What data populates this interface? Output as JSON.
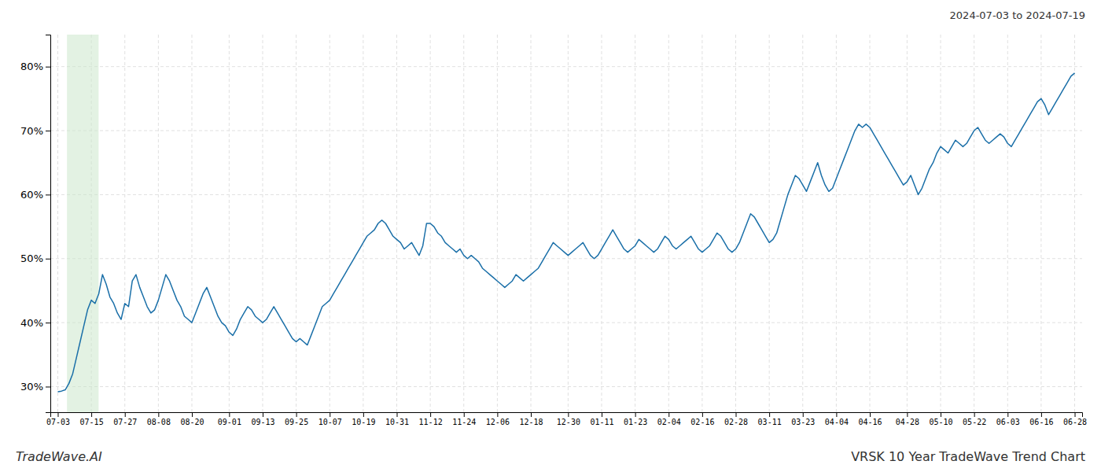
{
  "chart_data": {
    "type": "line",
    "title": "VRSK 10 Year TradeWave Trend Chart",
    "subtitle": "2024-07-03 to 2024-07-19",
    "annotations": [
      "TradeWave.AI"
    ],
    "color": "#1a6fa8",
    "grid": true,
    "ylim": [
      26,
      85
    ],
    "yticks": [
      {
        "value": 30,
        "label": "30%"
      },
      {
        "value": 40,
        "label": "40%"
      },
      {
        "value": 50,
        "label": "50%"
      },
      {
        "value": 60,
        "label": "60%"
      },
      {
        "value": 70,
        "label": "70%"
      },
      {
        "value": 80,
        "label": "80%"
      }
    ],
    "highlight": {
      "start": 2.466,
      "end": 10.96,
      "color": "#cce8cc"
    },
    "categories": [
      "07-03",
      null,
      null,
      null,
      null,
      null,
      null,
      null,
      null,
      "07-15",
      null,
      null,
      null,
      null,
      null,
      null,
      null,
      null,
      "07-27",
      null,
      null,
      null,
      null,
      null,
      null,
      null,
      null,
      "08-08",
      null,
      null,
      null,
      null,
      null,
      null,
      null,
      null,
      "08-20",
      null,
      null,
      null,
      null,
      null,
      null,
      null,
      null,
      null,
      "09-01",
      null,
      null,
      null,
      null,
      null,
      null,
      null,
      null,
      "09-13",
      null,
      null,
      null,
      null,
      null,
      null,
      null,
      null,
      "09-25",
      null,
      null,
      null,
      null,
      null,
      null,
      null,
      null,
      "10-07",
      null,
      null,
      null,
      null,
      null,
      null,
      null,
      null,
      "10-19",
      null,
      null,
      null,
      null,
      null,
      null,
      null,
      null,
      "10-31",
      null,
      null,
      null,
      null,
      null,
      null,
      null,
      null,
      "11-12",
      null,
      null,
      null,
      null,
      null,
      null,
      null,
      null,
      "11-24",
      null,
      null,
      null,
      null,
      null,
      null,
      null,
      null,
      "12-06",
      null,
      null,
      null,
      null,
      null,
      null,
      null,
      null,
      "12-18",
      null,
      null,
      null,
      null,
      null,
      null,
      null,
      null,
      null,
      "12-30",
      null,
      null,
      null,
      null,
      null,
      null,
      null,
      null,
      "01-11",
      null,
      null,
      null,
      null,
      null,
      null,
      null,
      null,
      "01-23",
      null,
      null,
      null,
      null,
      null,
      null,
      null,
      null,
      "02-04",
      null,
      null,
      null,
      null,
      null,
      null,
      null,
      null,
      "02-16",
      null,
      null,
      null,
      null,
      null,
      null,
      null,
      null,
      "02-28",
      null,
      null,
      null,
      null,
      null,
      null,
      null,
      null,
      "03-11",
      null,
      null,
      null,
      null,
      null,
      null,
      null,
      null,
      "03-23",
      null,
      null,
      null,
      null,
      null,
      null,
      null,
      null,
      "04-04",
      null,
      null,
      null,
      null,
      null,
      null,
      null,
      null,
      "04-16",
      null,
      null,
      null,
      null,
      null,
      null,
      null,
      null,
      null,
      "04-28",
      null,
      null,
      null,
      null,
      null,
      null,
      null,
      null,
      "05-10",
      null,
      null,
      null,
      null,
      null,
      null,
      null,
      null,
      "05-22",
      null,
      null,
      null,
      null,
      null,
      null,
      null,
      null,
      "06-03",
      null,
      null,
      null,
      null,
      null,
      null,
      null,
      null,
      "06-16",
      null,
      null,
      null,
      null,
      null,
      null,
      null,
      null,
      "06-28"
    ],
    "values": [
      29.2,
      29.3,
      29.5,
      30.5,
      32.0,
      34.5,
      37.0,
      39.5,
      42.0,
      43.5,
      43.0,
      44.5,
      47.5,
      46.0,
      44.0,
      43.0,
      41.5,
      40.5,
      43.0,
      42.5,
      46.5,
      47.5,
      45.5,
      44.0,
      42.5,
      41.5,
      42.0,
      43.5,
      45.5,
      47.5,
      46.5,
      45.0,
      43.5,
      42.5,
      41.0,
      40.5,
      40.0,
      41.5,
      43.0,
      44.5,
      45.5,
      44.0,
      42.5,
      41.0,
      40.0,
      39.5,
      38.5,
      38.0,
      39.0,
      40.5,
      41.5,
      42.5,
      42.0,
      41.0,
      40.5,
      40.0,
      40.5,
      41.5,
      42.5,
      41.5,
      40.5,
      39.5,
      38.5,
      37.5,
      37.0,
      37.5,
      37.0,
      36.5,
      38.0,
      39.5,
      41.0,
      42.5,
      43.0,
      43.5,
      44.5,
      45.5,
      46.5,
      47.5,
      48.5,
      49.5,
      50.5,
      51.5,
      52.5,
      53.5,
      54.0,
      54.5,
      55.5,
      56.0,
      55.5,
      54.5,
      53.5,
      53.0,
      52.5,
      51.5,
      52.0,
      52.5,
      51.5,
      50.5,
      52.0,
      55.5,
      55.5,
      55.0,
      54.0,
      53.5,
      52.5,
      52.0,
      51.5,
      51.0,
      51.5,
      50.5,
      50.0,
      50.5,
      50.0,
      49.5,
      48.5,
      48.0,
      47.5,
      47.0,
      46.5,
      46.0,
      45.5,
      46.0,
      46.5,
      47.5,
      47.0,
      46.5,
      47.0,
      47.5,
      48.0,
      48.5,
      49.5,
      50.5,
      51.5,
      52.5,
      52.0,
      51.5,
      51.0,
      50.5,
      51.0,
      51.5,
      52.0,
      52.5,
      51.5,
      50.5,
      50.0,
      50.5,
      51.5,
      52.5,
      53.5,
      54.5,
      53.5,
      52.5,
      51.5,
      51.0,
      51.5,
      52.0,
      53.0,
      52.5,
      52.0,
      51.5,
      51.0,
      51.5,
      52.5,
      53.5,
      53.0,
      52.0,
      51.5,
      52.0,
      52.5,
      53.0,
      53.5,
      52.5,
      51.5,
      51.0,
      51.5,
      52.0,
      53.0,
      54.0,
      53.5,
      52.5,
      51.5,
      51.0,
      51.5,
      52.5,
      54.0,
      55.5,
      57.0,
      56.5,
      55.5,
      54.5,
      53.5,
      52.5,
      53.0,
      54.0,
      56.0,
      58.0,
      60.0,
      61.5,
      63.0,
      62.5,
      61.5,
      60.5,
      62.0,
      63.5,
      65.0,
      63.0,
      61.5,
      60.5,
      61.0,
      62.5,
      64.0,
      65.5,
      67.0,
      68.5,
      70.0,
      71.0,
      70.5,
      71.0,
      70.5,
      69.5,
      68.5,
      67.5,
      66.5,
      65.5,
      64.5,
      63.5,
      62.5,
      61.5,
      62.0,
      63.0,
      61.5,
      60.0,
      61.0,
      62.5,
      64.0,
      65.0,
      66.5,
      67.5,
      67.0,
      66.5,
      67.5,
      68.5,
      68.0,
      67.5,
      68.0,
      69.0,
      70.0,
      70.5,
      69.5,
      68.5,
      68.0,
      68.5,
      69.0,
      69.5,
      69.0,
      68.0,
      67.5,
      68.5,
      69.5,
      70.5,
      71.5,
      72.5,
      73.5,
      74.5,
      75.0,
      74.0,
      72.5,
      73.5,
      74.5,
      75.5,
      76.5,
      77.5,
      78.5,
      79.0
    ]
  }
}
